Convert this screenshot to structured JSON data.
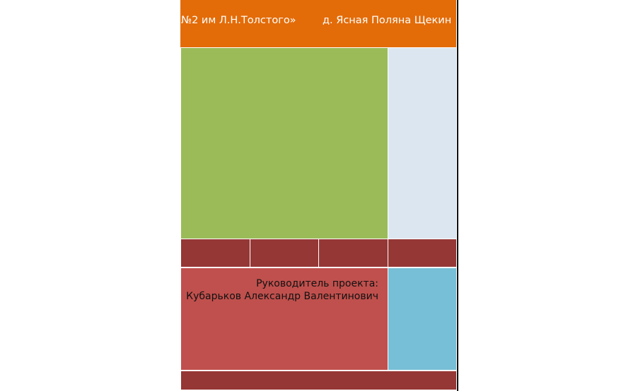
{
  "header": {
    "left_text": "№2 им Л.Н.Толстого»",
    "right_text": "д. Ясная Поляна Щекин"
  },
  "leader": {
    "label": "Руководитель проекта:",
    "name": "Кубарьков Александр Валентинович"
  }
}
